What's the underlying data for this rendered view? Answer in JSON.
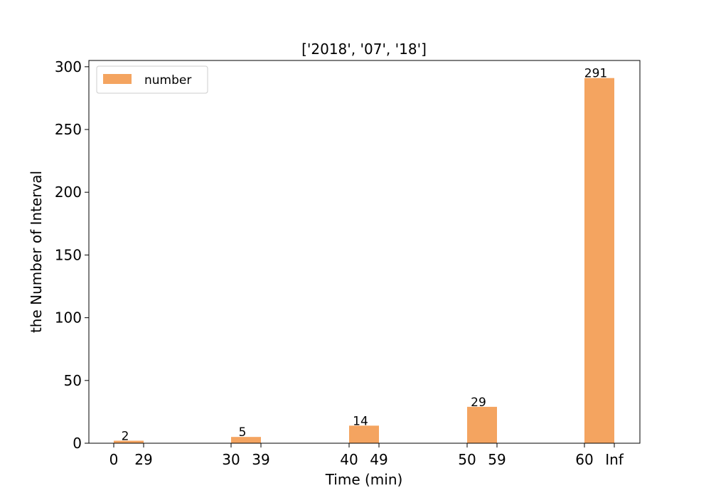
{
  "chart_data": {
    "type": "bar",
    "title": "['2018', '07', '18']",
    "xlabel": "Time (min)",
    "ylabel": "the Number of Interval",
    "categories": [
      "0-29",
      "30-39",
      "40-49",
      "50-59",
      "60-Inf"
    ],
    "xtick_labels": [
      "0",
      "29",
      "30",
      "39",
      "40",
      "49",
      "50",
      "59",
      "60",
      "Inf"
    ],
    "series": [
      {
        "name": "number",
        "values": [
          2,
          5,
          14,
          29,
          291
        ],
        "color": "#f4a460"
      }
    ],
    "yticks": [
      0,
      50,
      100,
      150,
      200,
      250,
      300
    ],
    "ylim": [
      0,
      305
    ],
    "grid": false,
    "legend_position": "top-left"
  }
}
